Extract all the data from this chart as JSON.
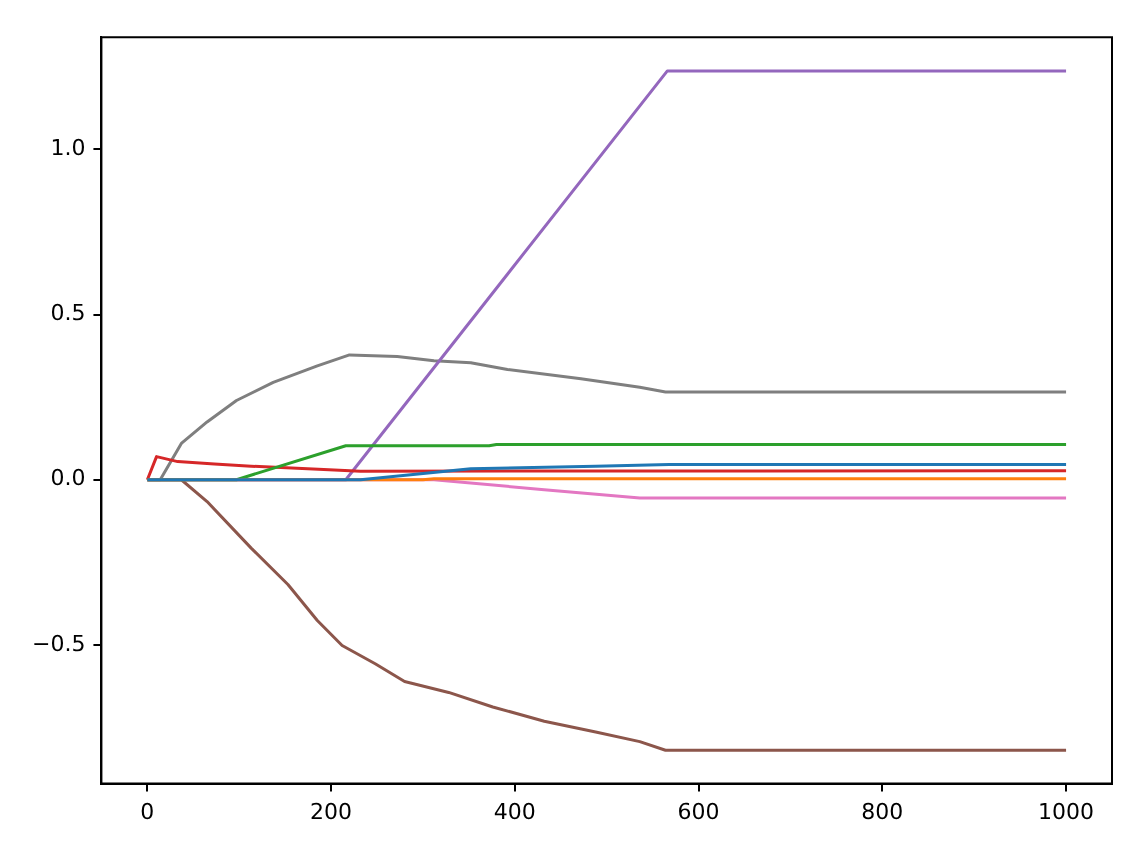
{
  "chart_data": {
    "type": "line",
    "xlim": [
      -50,
      1050
    ],
    "ylim": [
      -0.92,
      1.34
    ],
    "xticks": [
      0,
      200,
      400,
      600,
      800,
      1000
    ],
    "yticks": [
      {
        "value": -0.5,
        "label": "−0.5"
      },
      {
        "value": 0,
        "label": "0.0"
      },
      {
        "value": 0.5,
        "label": "0.5"
      },
      {
        "value": 1,
        "label": "1.0"
      }
    ],
    "grid": false,
    "legend": false,
    "marker": "none",
    "line_style": "solid",
    "series": [
      {
        "color": "#1f77b4",
        "x": [
          0,
          232,
          352,
          488,
          568,
          1000
        ],
        "values": [
          0,
          0,
          0.033,
          0.041,
          0.046,
          0.046
        ]
      },
      {
        "color": "#ff7f0e",
        "x": [
          0,
          300,
          312,
          1000
        ],
        "values": [
          0,
          0,
          0.003,
          0.003
        ]
      },
      {
        "color": "#2ca02c",
        "x": [
          0,
          97,
          216,
          372,
          380,
          1000
        ],
        "values": [
          0,
          0,
          0.103,
          0.103,
          0.107,
          0.107
        ]
      },
      {
        "color": "#d62728",
        "x": [
          0,
          10,
          33,
          73,
          113,
          192,
          232,
          1000
        ],
        "values": [
          0,
          0.07,
          0.055,
          0.048,
          0.041,
          0.031,
          0.026,
          0.027
        ]
      },
      {
        "color": "#9467bd",
        "x": [
          0,
          216,
          566,
          1000
        ],
        "values": [
          0,
          0,
          1.238,
          1.238
        ]
      },
      {
        "color": "#8c564b",
        "x": [
          0,
          37,
          65,
          113,
          153,
          185,
          212,
          248,
          280,
          328,
          376,
          432,
          488,
          536,
          564,
          1000
        ],
        "values": [
          0,
          0,
          -0.066,
          -0.207,
          -0.317,
          -0.426,
          -0.502,
          -0.557,
          -0.611,
          -0.644,
          -0.688,
          -0.731,
          -0.764,
          -0.793,
          -0.819,
          -0.819
        ]
      },
      {
        "color": "#e377c2",
        "x": [
          0,
          312,
          432,
          536,
          1000
        ],
        "values": [
          0,
          0,
          -0.03,
          -0.055,
          -0.055
        ]
      },
      {
        "color": "#7f7f7f",
        "x": [
          0,
          14,
          37,
          65,
          97,
          137,
          185,
          220,
          272,
          312,
          352,
          392,
          472,
          536,
          564,
          1000
        ],
        "values": [
          0,
          0,
          0.11,
          0.175,
          0.24,
          0.295,
          0.345,
          0.378,
          0.373,
          0.36,
          0.354,
          0.334,
          0.306,
          0.28,
          0.266,
          0.266
        ]
      }
    ]
  }
}
